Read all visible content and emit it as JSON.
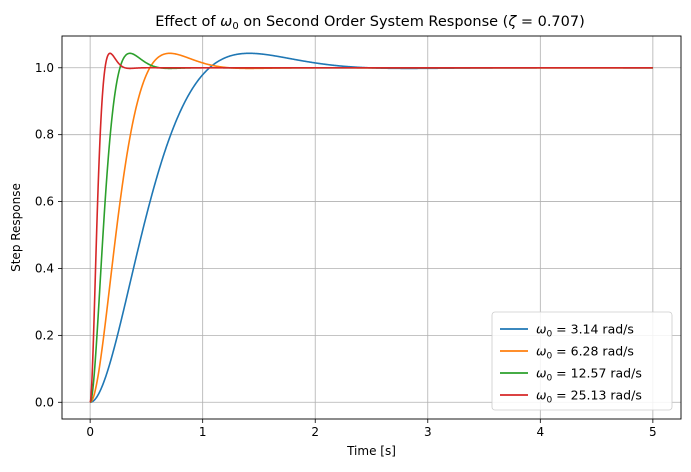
{
  "chart_data": {
    "type": "line",
    "title_prefix": "Effect of ",
    "title_symbol_base": "ω",
    "title_symbol_sub": "0",
    "title_middle": " on Second Order System Response (",
    "title_zeta": "ζ",
    "title_eq": " = 0.707)",
    "xlabel": "Time [s]",
    "ylabel": "Step Response",
    "xlim": [
      -0.25,
      5.25
    ],
    "ylim": [
      -0.05,
      1.095
    ],
    "xticks": [
      0,
      1,
      2,
      3,
      4,
      5
    ],
    "xtick_labels": [
      "0",
      "1",
      "2",
      "3",
      "4",
      "5"
    ],
    "yticks": [
      0.0,
      0.2,
      0.4,
      0.6,
      0.8,
      1.0
    ],
    "ytick_labels": [
      "0.0",
      "0.2",
      "0.4",
      "0.6",
      "0.8",
      "1.0"
    ],
    "grid": true,
    "legend_placement": "lower-right",
    "zeta": 0.707,
    "t_start": 0,
    "t_end": 5,
    "series": [
      {
        "name_base": "ω",
        "name_sub": "0",
        "name_rest": " = 3.14 rad/s",
        "omega": 3.14,
        "color": "#1f77b4"
      },
      {
        "name_base": "ω",
        "name_sub": "0",
        "name_rest": " = 6.28 rad/s",
        "omega": 6.28,
        "color": "#ff7f0e"
      },
      {
        "name_base": "ω",
        "name_sub": "0",
        "name_rest": " = 12.57 rad/s",
        "omega": 12.57,
        "color": "#2ca02c"
      },
      {
        "name_base": "ω",
        "name_sub": "0",
        "name_rest": " = 25.13 rad/s",
        "omega": 25.13,
        "color": "#d62728"
      }
    ]
  }
}
